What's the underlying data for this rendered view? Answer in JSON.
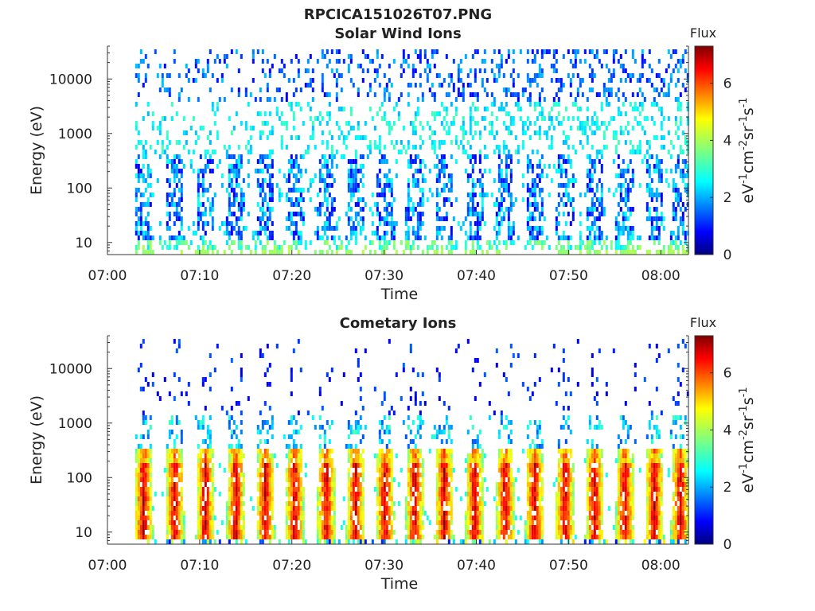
{
  "figure": {
    "title": "RPCICA151026T07.PNG"
  },
  "chart_data": [
    {
      "type": "heatmap",
      "title": "Solar Wind Ions",
      "xlabel": "Time",
      "ylabel": "Energy (eV)",
      "x_range": [
        "07:00",
        "08:03"
      ],
      "x_ticks": [
        "07:00",
        "07:10",
        "07:20",
        "07:30",
        "07:40",
        "07:50",
        "08:00"
      ],
      "y_scale": "log",
      "y_range": [
        6,
        40000
      ],
      "y_ticks": [
        10,
        100,
        1000,
        10000
      ],
      "y_tick_labels": [
        "10",
        "100",
        "1000",
        "10000"
      ],
      "data_start": "07:03",
      "bursts_minutes": [
        3.8,
        7.2,
        10.5,
        13.8,
        17.0,
        20.2,
        23.6,
        26.8,
        30.0,
        33.2,
        36.4,
        39.7,
        43.0,
        46.2,
        49.5,
        52.7,
        56.0,
        59.2,
        62.0
      ],
      "colorbar": {
        "title": "Flux",
        "label": "eV-1cm-2sr-1s-1",
        "range": [
          0,
          7.3
        ],
        "ticks": [
          "0",
          "2",
          "4",
          "6"
        ],
        "colormap": "jet"
      }
    },
    {
      "type": "heatmap",
      "title": "Cometary Ions",
      "xlabel": "Time",
      "ylabel": "Energy (eV)",
      "x_range": [
        "07:00",
        "08:03"
      ],
      "x_ticks": [
        "07:00",
        "07:10",
        "07:20",
        "07:30",
        "07:40",
        "07:50",
        "08:00"
      ],
      "y_scale": "log",
      "y_range": [
        6,
        40000
      ],
      "y_ticks": [
        10,
        100,
        1000,
        10000
      ],
      "y_tick_labels": [
        "10",
        "100",
        "1000",
        "10000"
      ],
      "data_start": "07:03",
      "bursts_minutes": [
        3.8,
        7.2,
        10.5,
        13.8,
        17.0,
        20.2,
        23.6,
        26.8,
        30.0,
        33.2,
        36.4,
        39.7,
        43.0,
        46.2,
        49.5,
        52.7,
        56.0,
        59.2,
        62.0
      ],
      "colorbar": {
        "title": "Flux",
        "label": "eV-1cm-2sr-1s-1",
        "range": [
          0,
          7.3
        ],
        "ticks": [
          "0",
          "2",
          "4",
          "6"
        ],
        "colormap": "jet"
      }
    }
  ]
}
